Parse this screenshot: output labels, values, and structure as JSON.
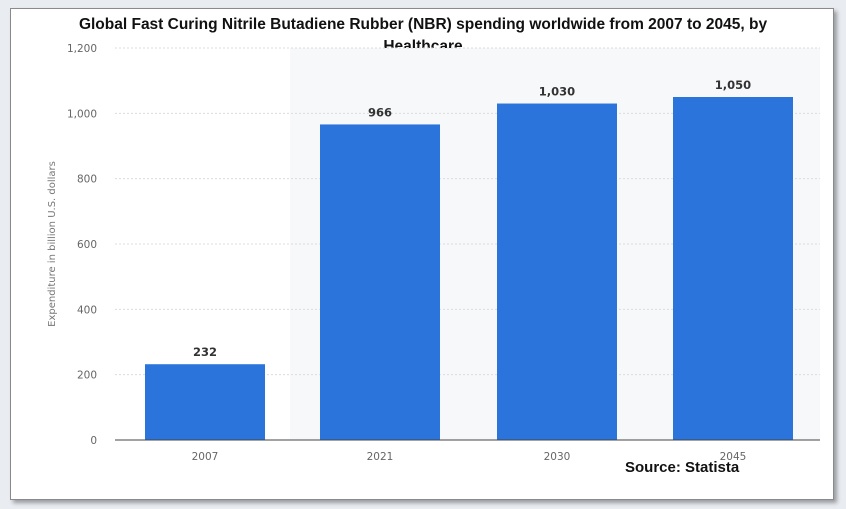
{
  "chart_data": {
    "type": "bar",
    "title_line1": "Global Fast Curing Nitrile Butadiene Rubber (NBR) spending worldwide from 2007 to 2045, by",
    "title_line2": "Healthcare",
    "ylabel": "Expenditure in billion U.S. dollars",
    "xlabel": "",
    "categories": [
      "2007",
      "2021",
      "2030",
      "2045"
    ],
    "values": [
      232,
      966,
      1030,
      1050
    ],
    "data_labels": [
      "232",
      "966",
      "1,030",
      "1,050"
    ],
    "ylim": [
      0,
      1200
    ],
    "yticks": [
      0,
      200,
      400,
      600,
      800,
      1000,
      1200
    ],
    "ytick_labels": [
      "0",
      "200",
      "400",
      "600",
      "800",
      "1,000",
      "1,200"
    ],
    "grid": true,
    "bar_color": "#2a74dc",
    "source": "Source: Statista"
  }
}
